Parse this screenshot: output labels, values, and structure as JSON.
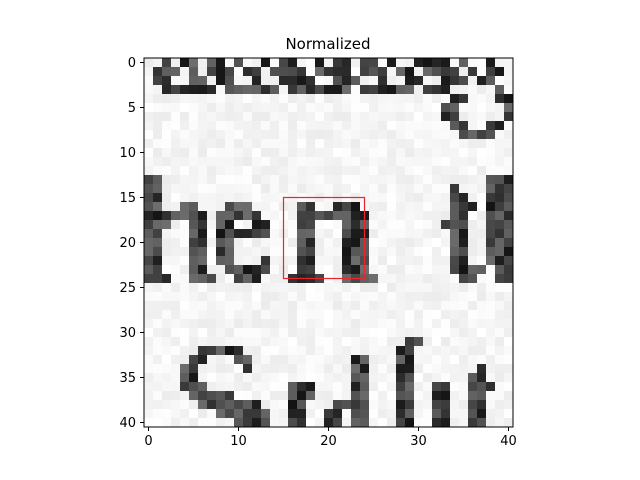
{
  "chart_data": {
    "type": "heatmap",
    "title": "Normalized",
    "colormap": "gray",
    "x_ticks": [
      "0",
      "10",
      "20",
      "30",
      "40"
    ],
    "y_ticks": [
      "0",
      "5",
      "10",
      "15",
      "20",
      "25",
      "30",
      "35",
      "40"
    ],
    "xlim": [
      -0.5,
      40.5
    ],
    "ylim": [
      40.5,
      -0.5
    ],
    "grid_size": [
      41,
      41
    ],
    "rows": [
      "..x.xx.xx.x..x.xx..x.xx.xx.x..xxxx.x..x..",
      ".xxx.x.xxx.xx.xxxx.xxxx.xxx.xx.xxxx.x.xx.",
      ".xx..xx.xx..x..xxxx..xxx..x..xx..xxx.xx..",
      "..xxxxxx.xxxxxx.xxxxxxx.xxxxxx.xxx.....x.",
      "..................................xx...xx",
      ".................................xx.....x",
      ".................................xx.....x",
      "..................................xx..xx.",
      "...................................xxxx..",
      ".........................................",
      ".........................................",
      ".........................................",
      ".........................................",
      "xx....................................xxx",
      "xx................................x...xxx",
      "xx................................xx..xxx",
      "xx..xx...xxx.....xx..xxx..........xxx.xxx",
      "xxxxxxx.xxxxx....xxxxxxxx.........xx..xxx",
      "xxx..xx.xx..xx...xx...xxx........xxx..xxx",
      "xx...xx.xxxxxx...xx...xxx.........xx..xxx",
      "xx...xx.xx.......xx...xxx.........xx..xxx",
      "xx...xx.xx.......xx...xxx.........xx..xxx",
      "xx...xx.xx...x...xx...xxx.........xx..xxx",
      "xx...xx..xxxxx...xx...xxx.........xxxx.xx",
      "xxx..xxx..xxx...xxxx..xxxx.........xx..xx",
      ".........................................",
      ".........................................",
      ".........................................",
      ".........................................",
      ".........................................",
      ".........................................",
      ".............................xx..........",
      "......xxxxx.................xx...........",
      ".....xx...xx...........xx...xx...........",
      "....xx.....x...........xx...xx.......x...",
      "....xx.................xx...xx......xx...",
      "....xxx.........xxx....xx...xx..xx..xxx..",
      ".....xxxxx......xxx....xx...xx..xx..xx...",
      "......xxxxxxx...xx...xxxx...xx..xx..xx...",
      "........xxxxxx..xx..xx.xx...xx..xx..xx...",
      "..........xxxx..xx..xx.xx...xx..xx..xx..."
    ],
    "highlight_box": {
      "x_min": 15,
      "x_max": 24,
      "y_min": 15,
      "y_max": 24,
      "color": "#e8262b"
    }
  }
}
